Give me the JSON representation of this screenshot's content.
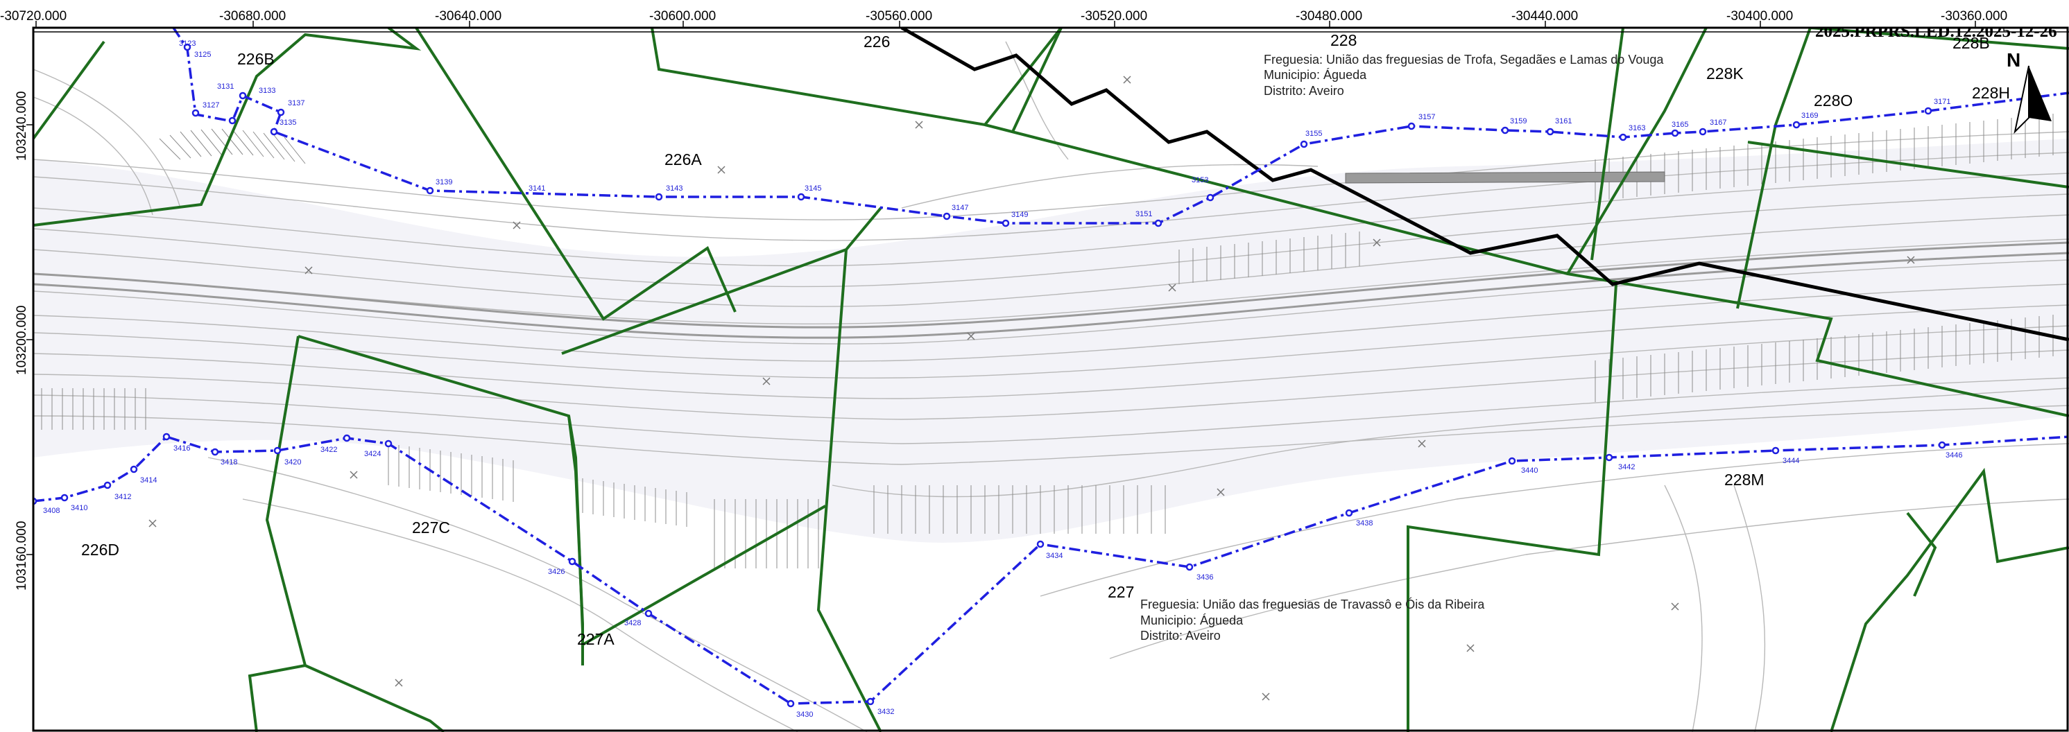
{
  "header_code": "2025.PRPRS.LED.12.2025-12-26",
  "north_label": "N",
  "x_ticks": [
    "-30720.000",
    "-30680.000",
    "-30640.000",
    "-30600.000",
    "-30560.000",
    "-30520.000",
    "-30480.000",
    "-30440.000",
    "-30400.000",
    "-30360.000"
  ],
  "y_ticks": [
    "103240.000",
    "103200.000",
    "103160.000"
  ],
  "parcels": [
    "226B",
    "226",
    "228",
    "228K",
    "228O",
    "228B",
    "228H",
    "226A",
    "226D",
    "227C",
    "227A",
    "227",
    "228M"
  ],
  "info_north": {
    "freguesia": "Freguesia: União das freguesias de Trofa, Segadães e Lamas do Vouga",
    "municipio": "Municipio: Águeda",
    "distrito": "Distrito: Aveiro"
  },
  "info_south": {
    "freguesia": "Freguesia: União das freguesias de Travassô e Óis da Ribeira",
    "municipio": "Municipio: Águeda",
    "distrito": "Distrito: Aveiro"
  },
  "points_north": [
    "3123",
    "3125",
    "3127",
    "3131",
    "3133",
    "3137",
    "3135",
    "3139",
    "3141",
    "3143",
    "3145",
    "3147",
    "3149",
    "3151",
    "3153",
    "3155",
    "3157",
    "3159",
    "3161",
    "3163",
    "3165",
    "3167",
    "3169",
    "3171"
  ],
  "points_south": [
    "3408",
    "3410",
    "3412",
    "3414",
    "3416",
    "3418",
    "3420",
    "3422",
    "3424",
    "3426",
    "3428",
    "3430",
    "3432",
    "3434",
    "3436",
    "3438",
    "3440",
    "3442",
    "3444",
    "3446"
  ],
  "colors": {
    "boundary": "#1e6e1e",
    "expropriation": "#1f1fe0",
    "limit": "#000000",
    "contour": "#b5b5b5",
    "background": "#f6f6fa"
  }
}
